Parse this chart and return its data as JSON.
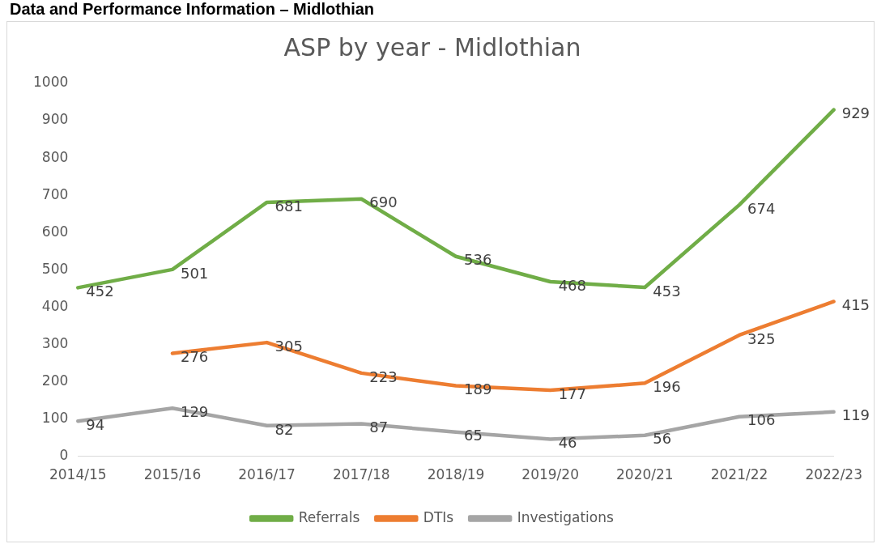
{
  "chart_data": {
    "type": "line",
    "title": "ASP by year - Midlothian",
    "annotations": [
      "Data and Performance Information – Midlothian"
    ],
    "categories": [
      "2014/15",
      "2015/16",
      "2016/17",
      "2017/18",
      "2018/19",
      "2019/20",
      "2020/21",
      "2021/22",
      "2022/23"
    ],
    "series": [
      {
        "name": "Referrals",
        "color": "#70ad47",
        "values": [
          452,
          501,
          681,
          690,
          536,
          468,
          453,
          674,
          929
        ]
      },
      {
        "name": "DTIs",
        "color": "#ed7d31",
        "values": [
          null,
          276,
          305,
          223,
          189,
          177,
          196,
          325,
          415
        ]
      },
      {
        "name": "Investigations",
        "color": "#a5a5a5",
        "values": [
          94,
          129,
          82,
          87,
          65,
          46,
          56,
          106,
          119
        ]
      }
    ],
    "ylim": [
      0,
      1000
    ],
    "yticks": [
      0,
      100,
      200,
      300,
      400,
      500,
      600,
      700,
      800,
      900,
      1000
    ],
    "grid": false,
    "legend": "bottom",
    "marker": "none",
    "line_style": "solid",
    "data_labels": true
  }
}
